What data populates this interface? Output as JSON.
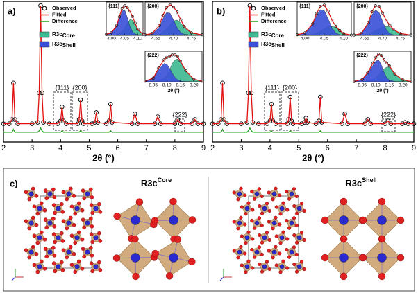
{
  "chart_data": [
    {
      "type": "line",
      "label": "a)",
      "xlabel": "2θ (°)",
      "xlim": [
        2,
        9
      ],
      "xticks": [
        2,
        3,
        4,
        5,
        6,
        7,
        8,
        9
      ],
      "ylim": [
        0,
        100
      ],
      "x": [
        2,
        2.2,
        2.3,
        2.35,
        2.4,
        2.5,
        3.0,
        3.2,
        3.25,
        3.3,
        3.35,
        3.4,
        3.6,
        3.9,
        4.0,
        4.05,
        4.1,
        4.2,
        4.6,
        4.65,
        4.7,
        4.75,
        4.8,
        5.1,
        5.2,
        5.25,
        5.3,
        5.6,
        5.7,
        5.75,
        5.8,
        6.5,
        6.6,
        6.7,
        7.3,
        7.4,
        7.5,
        8.0,
        8.1,
        8.2,
        8.6,
        8.7,
        8.8,
        9
      ],
      "series": [
        {
          "name": "Observed",
          "color": "#000000",
          "values": [
            13,
            13,
            16,
            42,
            16,
            13,
            13,
            14,
            35,
            97,
            35,
            14,
            13,
            13,
            15,
            25,
            15,
            13,
            13,
            16,
            30,
            15,
            13,
            13,
            14,
            21,
            14,
            13,
            15,
            27,
            14,
            13,
            20,
            13,
            13,
            18,
            13,
            13,
            16,
            13,
            13,
            16,
            13,
            13
          ]
        },
        {
          "name": "Fitted",
          "color": "#e01010",
          "values": [
            13,
            13,
            16,
            42,
            16,
            13,
            13,
            14,
            35,
            97,
            35,
            14,
            13,
            13,
            15,
            25,
            15,
            13,
            13,
            16,
            30,
            15,
            13,
            13,
            14,
            21,
            14,
            13,
            15,
            27,
            14,
            13,
            20,
            13,
            13,
            18,
            13,
            13,
            16,
            13,
            13,
            16,
            13,
            13
          ]
        },
        {
          "name": "Difference",
          "color": "#22a022",
          "values": [
            7,
            7,
            7,
            9,
            7,
            7,
            7,
            7,
            8,
            10,
            8,
            7,
            7,
            7,
            7,
            8,
            7,
            7,
            7,
            7,
            8,
            7,
            7,
            7,
            7,
            7,
            7,
            7,
            7,
            8,
            7,
            7,
            7,
            7,
            7,
            7,
            7,
            7,
            7,
            7,
            7,
            7,
            7,
            7
          ]
        }
      ],
      "phases": [
        {
          "name": "R3c",
          "sub": "Core",
          "color": "#3cb890"
        },
        {
          "name": "R3c",
          "sub": "Shell",
          "color": "#3a4fd8"
        }
      ],
      "annotations": [
        "{111}",
        "{200}",
        "{222}"
      ],
      "insets": [
        {
          "title": "{111}",
          "xlim": [
            3.98,
            4.12
          ],
          "xticks": [
            {
              "value": 4,
              "label": "4.00"
            },
            {
              "value": 4.05,
              "label": "4.05"
            },
            {
              "value": 4.1,
              "label": "4.10"
            }
          ],
          "ylim": [
            0,
            110
          ],
          "x": [
            3.98,
            4.0,
            4.02,
            4.03,
            4.04,
            4.05,
            4.06,
            4.07,
            4.08,
            4.09,
            4.1,
            4.12
          ],
          "observed": [
            3,
            9,
            33,
            61,
            90,
            98,
            92,
            80,
            62,
            40,
            20,
            3
          ],
          "fitted": [
            3,
            9,
            33,
            61,
            90,
            98,
            92,
            80,
            62,
            40,
            20,
            3
          ],
          "core": [
            0,
            1,
            3,
            6,
            12,
            22,
            40,
            52,
            50,
            35,
            18,
            3
          ],
          "shell": [
            2,
            8,
            30,
            55,
            80,
            85,
            60,
            30,
            12,
            5,
            2,
            0
          ]
        },
        {
          "title": "{200}",
          "xlim": [
            4.62,
            4.78
          ],
          "xticks": [
            4.65,
            {
              "value": 4.7,
              "label": "4.70"
            },
            4.75
          ],
          "ylim": [
            0,
            120
          ],
          "x": [
            4.62,
            4.64,
            4.66,
            4.67,
            4.68,
            4.69,
            4.7,
            4.71,
            4.72,
            4.73,
            4.75,
            4.78
          ],
          "observed": [
            2,
            7,
            36,
            72,
            100,
            110,
            102,
            84,
            56,
            32,
            9,
            2
          ],
          "fitted": [
            2,
            7,
            36,
            72,
            100,
            110,
            102,
            84,
            56,
            32,
            9,
            2
          ],
          "core": [
            0,
            1,
            5,
            12,
            22,
            38,
            52,
            55,
            45,
            28,
            8,
            1
          ],
          "shell": [
            1,
            5,
            30,
            60,
            82,
            80,
            55,
            28,
            10,
            4,
            1,
            0
          ]
        },
        {
          "title": "{222}",
          "xlabel": "2θ (°)",
          "xlim": [
            8.02,
            8.23
          ],
          "xticks": [
            8.05,
            {
              "value": 8.1,
              "label": "8.10"
            },
            8.15,
            {
              "value": 8.2,
              "label": "8.20"
            }
          ],
          "ylim": [
            0,
            100
          ],
          "x": [
            8.02,
            8.05,
            8.07,
            8.09,
            8.1,
            8.11,
            8.12,
            8.13,
            8.14,
            8.15,
            8.17,
            8.2,
            8.23
          ],
          "observed": [
            2,
            12,
            45,
            72,
            80,
            82,
            88,
            88,
            82,
            68,
            36,
            8,
            2
          ],
          "fitted": [
            2,
            12,
            45,
            72,
            80,
            82,
            88,
            88,
            82,
            68,
            36,
            8,
            2
          ],
          "core": [
            0,
            1,
            4,
            12,
            22,
            38,
            60,
            72,
            75,
            65,
            35,
            8,
            1
          ],
          "shell": [
            1,
            10,
            40,
            60,
            58,
            45,
            28,
            15,
            6,
            2,
            1,
            0,
            0
          ]
        }
      ]
    },
    {
      "type": "line",
      "label": "b)",
      "xlabel": "2θ (°)",
      "xlim": [
        2,
        9
      ],
      "xticks": [
        2,
        3,
        4,
        5,
        6,
        7,
        8,
        9
      ],
      "ylim": [
        0,
        100
      ],
      "x": [
        2,
        2.2,
        2.3,
        2.35,
        2.4,
        2.5,
        3.0,
        3.2,
        3.25,
        3.3,
        3.35,
        3.4,
        3.6,
        3.9,
        4.0,
        4.05,
        4.1,
        4.2,
        4.6,
        4.65,
        4.7,
        4.75,
        4.8,
        5.1,
        5.2,
        5.25,
        5.3,
        5.6,
        5.7,
        5.75,
        5.8,
        6.5,
        6.6,
        6.7,
        7.3,
        7.4,
        7.5,
        8.0,
        8.1,
        8.2,
        8.6,
        8.7,
        8.8,
        9
      ],
      "series": [
        {
          "name": "Observed",
          "color": "#000000",
          "values": [
            13,
            13,
            16,
            42,
            16,
            13,
            13,
            14,
            35,
            97,
            35,
            14,
            13,
            13,
            15,
            27,
            15,
            13,
            13,
            16,
            32,
            15,
            13,
            13,
            14,
            17,
            14,
            13,
            15,
            32,
            14,
            13,
            20,
            13,
            13,
            16,
            13,
            13,
            15,
            13,
            13,
            14,
            13,
            13
          ]
        },
        {
          "name": "Fitted",
          "color": "#e01010",
          "values": [
            13,
            13,
            16,
            42,
            16,
            13,
            13,
            14,
            35,
            97,
            35,
            14,
            13,
            13,
            15,
            27,
            15,
            13,
            13,
            16,
            32,
            15,
            13,
            13,
            14,
            17,
            14,
            13,
            15,
            32,
            14,
            13,
            20,
            13,
            13,
            16,
            13,
            13,
            15,
            13,
            13,
            14,
            13,
            13
          ]
        },
        {
          "name": "Difference",
          "color": "#22a022",
          "values": [
            7,
            7,
            7,
            9,
            7,
            7,
            7,
            7,
            8,
            10,
            8,
            7,
            7,
            7,
            7,
            8,
            7,
            7,
            7,
            7,
            8,
            7,
            7,
            7,
            7,
            7,
            7,
            7,
            7,
            8,
            7,
            7,
            7,
            7,
            7,
            7,
            7,
            7,
            7,
            7,
            7,
            7,
            7,
            7
          ]
        }
      ],
      "phases": [
        {
          "name": "R3c",
          "sub": "Core",
          "color": "#3cb890"
        },
        {
          "name": "R3c",
          "sub": "Shell",
          "color": "#3a4fd8"
        }
      ],
      "annotations": [
        "{111}",
        "{200}",
        "{222}"
      ],
      "insets": [
        {
          "title": "{111}",
          "xlim": [
            3.98,
            4.12
          ],
          "xticks": [
            {
              "value": 4,
              "label": "4.00"
            },
            4.05,
            {
              "value": 4.1,
              "label": "4.10"
            }
          ],
          "ylim": [
            0,
            110
          ],
          "x": [
            3.98,
            4.0,
            4.02,
            4.03,
            4.04,
            4.05,
            4.06,
            4.07,
            4.08,
            4.09,
            4.1,
            4.12
          ],
          "observed": [
            2,
            8,
            38,
            72,
            96,
            100,
            80,
            50,
            30,
            16,
            6,
            1
          ],
          "fitted": [
            2,
            8,
            38,
            72,
            96,
            100,
            80,
            50,
            30,
            16,
            6,
            1
          ],
          "core": [
            0,
            1,
            3,
            7,
            14,
            22,
            28,
            30,
            26,
            15,
            6,
            1
          ],
          "shell": [
            2,
            7,
            35,
            65,
            85,
            82,
            55,
            25,
            8,
            2,
            0,
            0
          ]
        },
        {
          "title": "{200}",
          "xlim": [
            4.62,
            4.78
          ],
          "xticks": [
            4.65,
            {
              "value": 4.7,
              "label": "4.70"
            },
            4.75
          ],
          "ylim": [
            0,
            110
          ],
          "x": [
            4.62,
            4.64,
            4.66,
            4.67,
            4.68,
            4.69,
            4.7,
            4.71,
            4.72,
            4.73,
            4.75,
            4.78
          ],
          "observed": [
            1,
            6,
            42,
            78,
            98,
            96,
            74,
            50,
            34,
            20,
            6,
            1
          ],
          "fitted": [
            1,
            6,
            42,
            78,
            98,
            96,
            74,
            50,
            34,
            20,
            6,
            1
          ],
          "core": [
            0,
            1,
            4,
            9,
            16,
            22,
            28,
            30,
            28,
            18,
            5,
            1
          ],
          "shell": [
            1,
            5,
            38,
            68,
            84,
            76,
            46,
            20,
            6,
            2,
            0,
            0
          ]
        },
        {
          "title": "{222}",
          "xlabel": "2θ (°)",
          "xlim": [
            8.02,
            8.23
          ],
          "xticks": [
            8.05,
            {
              "value": 8.1,
              "label": "8.10"
            },
            8.15,
            {
              "value": 8.2,
              "label": "8.20"
            }
          ],
          "ylim": [
            0,
            100
          ],
          "x": [
            8.02,
            8.05,
            8.07,
            8.09,
            8.1,
            8.11,
            8.12,
            8.13,
            8.14,
            8.15,
            8.17,
            8.2,
            8.23
          ],
          "observed": [
            1,
            8,
            30,
            62,
            80,
            90,
            86,
            72,
            62,
            52,
            26,
            6,
            1
          ],
          "fitted": [
            1,
            8,
            30,
            62,
            80,
            90,
            86,
            72,
            62,
            52,
            26,
            6,
            1
          ],
          "core": [
            0,
            1,
            3,
            8,
            14,
            22,
            32,
            42,
            48,
            48,
            24,
            6,
            1
          ],
          "shell": [
            1,
            7,
            27,
            55,
            68,
            72,
            56,
            32,
            14,
            5,
            1,
            0,
            0
          ]
        }
      ]
    }
  ],
  "panel_c": {
    "label": "c)",
    "titles": [
      {
        "name": "R3c",
        "sup": "Core"
      },
      {
        "name": "R3c",
        "sup": "Shell"
      }
    ]
  }
}
